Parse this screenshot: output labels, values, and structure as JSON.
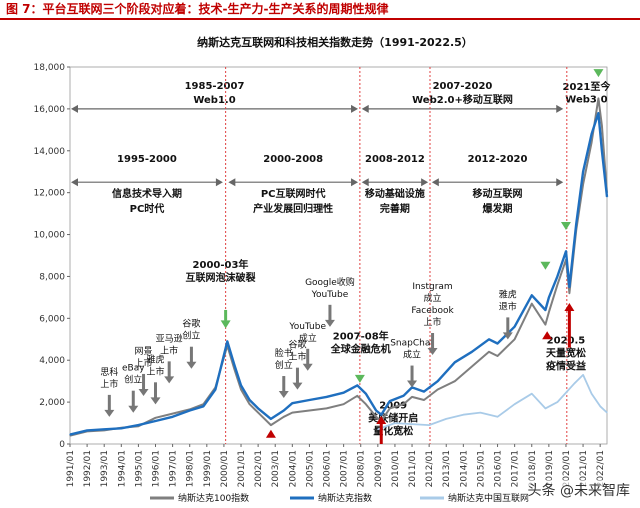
{
  "figure": {
    "caption": "图 7：平台互联网三个阶段对应着：技术-生产力-生产关系的周期性规律",
    "watermark": "头条 @未来智库"
  },
  "chart_data": {
    "type": "line",
    "title": "纳斯达克互联网和科技相关指数走势（1991-2022.5）",
    "ylim": [
      0,
      18000
    ],
    "yticks": [
      "0",
      "2,000",
      "4,000",
      "6,000",
      "8,000",
      "10,000",
      "12,000",
      "14,000",
      "16,000",
      "18,000"
    ],
    "xticks": [
      "1991/01",
      "1992/01",
      "1993/01",
      "1994/01",
      "1995/01",
      "1996/01",
      "1997/01",
      "1998/01",
      "1999/01",
      "2000/01",
      "2001/01",
      "2002/01",
      "2003/01",
      "2004/01",
      "2005/01",
      "2006/01",
      "2007/01",
      "2008/01",
      "2009/01",
      "2010/01",
      "2011/01",
      "2012/01",
      "2013/01",
      "2014/01",
      "2015/01",
      "2016/01",
      "2017/01",
      "2018/01",
      "2019/01",
      "2020/01",
      "2021/01",
      "2022/01"
    ],
    "xrange": [
      1991.0,
      2022.4
    ],
    "series": [
      {
        "name": "纳斯达克100指数",
        "color": "#7f7f7f",
        "x": [
          1991.0,
          1992.0,
          1993.0,
          1994.0,
          1995.0,
          1996.0,
          1997.0,
          1998.0,
          1998.8,
          1999.5,
          2000.2,
          2000.6,
          2001.0,
          2001.5,
          2002.0,
          2002.75,
          2003.5,
          2004.0,
          2005.0,
          2006.0,
          2007.0,
          2007.8,
          2008.3,
          2008.9,
          2009.2,
          2009.7,
          2010.5,
          2011.0,
          2011.7,
          2012.5,
          2013.5,
          2014.5,
          2015.5,
          2016.0,
          2017.0,
          2018.0,
          2018.8,
          2019.0,
          2019.5,
          2020.0,
          2020.2,
          2020.6,
          2021.0,
          2021.5,
          2021.9,
          2022.1,
          2022.4
        ],
        "y": [
          400,
          600,
          650,
          780,
          850,
          1250,
          1450,
          1650,
          1900,
          2700,
          4700,
          3600,
          2600,
          1900,
          1500,
          900,
          1300,
          1500,
          1600,
          1700,
          1900,
          2300,
          1900,
          1300,
          1100,
          1700,
          1900,
          2250,
          2100,
          2600,
          3000,
          3700,
          4400,
          4200,
          5000,
          6700,
          5700,
          6300,
          7600,
          8800,
          7200,
          10200,
          12400,
          14400,
          16500,
          15200,
          12000
        ]
      },
      {
        "name": "纳斯达克指数",
        "color": "#1f6fbf",
        "x": [
          1991.0,
          1992.0,
          1993.0,
          1994.0,
          1995.0,
          1996.0,
          1997.0,
          1998.0,
          1998.8,
          1999.5,
          2000.2,
          2000.6,
          2001.0,
          2001.5,
          2002.0,
          2002.75,
          2003.5,
          2004.0,
          2005.0,
          2006.0,
          2007.0,
          2007.8,
          2008.3,
          2008.9,
          2009.2,
          2009.7,
          2010.5,
          2011.0,
          2011.7,
          2012.5,
          2013.5,
          2014.5,
          2015.5,
          2016.0,
          2017.0,
          2018.0,
          2018.8,
          2019.0,
          2019.5,
          2020.0,
          2020.2,
          2020.6,
          2021.0,
          2021.5,
          2021.9,
          2022.1,
          2022.4
        ],
        "y": [
          450,
          650,
          700,
          750,
          900,
          1100,
          1300,
          1600,
          1800,
          2600,
          4900,
          3800,
          2800,
          2100,
          1700,
          1200,
          1600,
          1950,
          2100,
          2250,
          2450,
          2800,
          2400,
          1600,
          1400,
          2050,
          2300,
          2700,
          2500,
          3000,
          3900,
          4400,
          5000,
          4800,
          5600,
          7100,
          6400,
          7000,
          8000,
          9200,
          7500,
          10500,
          13000,
          14800,
          15800,
          14000,
          11800
        ]
      },
      {
        "name": "纳斯达克中国互联网",
        "color": "#a9cbe8",
        "x": [
          2009.0,
          2010.0,
          2011.0,
          2012.0,
          2013.0,
          2014.0,
          2015.0,
          2016.0,
          2017.0,
          2018.0,
          2018.8,
          2019.5,
          2020.5,
          2021.0,
          2021.5,
          2022.0,
          2022.4
        ],
        "y": [
          700,
          1000,
          950,
          900,
          1200,
          1400,
          1500,
          1300,
          1900,
          2400,
          1700,
          2000,
          2900,
          3300,
          2400,
          1800,
          1500
        ]
      }
    ],
    "phase_spans": [
      {
        "label1": "1985-2007",
        "label2": "Web1.0",
        "from": 1991.0,
        "to": 2007.9,
        "level": 16000
      },
      {
        "label1": "2007-2020",
        "label2": "Web2.0+移动互联网",
        "from": 2008.0,
        "to": 2019.9,
        "level": 16000
      },
      {
        "label1": "1995-2000",
        "label2": "信息技术导入期",
        "label3": "PC时代",
        "from": 1991.0,
        "to": 2000.0,
        "level": 12500
      },
      {
        "label1": "2000-2008",
        "label2": "PC互联网时代",
        "label3": "产业发展回归理性",
        "from": 2000.2,
        "to": 2007.9,
        "level": 12500
      },
      {
        "label1": "2008-2012",
        "label2": "移动基础设施",
        "label3": "完善期",
        "from": 2008.0,
        "to": 2012.0,
        "level": 12500
      },
      {
        "label1": "2012-2020",
        "label2": "移动互联网",
        "label3": "爆发期",
        "from": 2012.1,
        "to": 2019.9,
        "level": 12500
      }
    ],
    "top_label": {
      "line1": "2021至今",
      "line2": "Web3.0"
    },
    "vlines": [
      2000.1,
      2007.95,
      2012.05,
      2020.05
    ],
    "events": [
      {
        "lines": [
          "思科",
          "上市"
        ],
        "x": 1993.3
      },
      {
        "lines": [
          "eBay",
          "创立"
        ],
        "x": 1994.7
      },
      {
        "lines": [
          "网景",
          "上市"
        ],
        "x": 1995.3
      },
      {
        "lines": [
          "雅虎",
          "上市"
        ],
        "x": 1996.0
      },
      {
        "lines": [
          "亚马逊",
          "上市"
        ],
        "x": 1996.8
      },
      {
        "lines": [
          "谷歌",
          "创立"
        ],
        "x": 1998.1
      },
      {
        "lines": [
          "脸书",
          "创立"
        ],
        "x": 2003.5
      },
      {
        "lines": [
          "谷歌",
          "上市"
        ],
        "x": 2004.3
      },
      {
        "lines": [
          "YouTube",
          "成立"
        ],
        "x": 2004.9
      },
      {
        "lines": [
          "Google收购",
          "YouTube"
        ],
        "x": 2006.2
      },
      {
        "lines": [
          "SnapChat",
          "成立"
        ],
        "x": 2011.0
      },
      {
        "lines": [
          "Instgram",
          "成立",
          "Facebook",
          "上市"
        ],
        "x": 2012.2
      },
      {
        "lines": [
          "雅虎",
          "退市"
        ],
        "x": 2016.6
      }
    ],
    "callouts": [
      {
        "lines": [
          "2000-03年",
          "互联网泡沫破裂"
        ],
        "x": 1999.8
      },
      {
        "lines": [
          "2007-08年",
          "全球金融危机"
        ],
        "x": 2008.0
      },
      {
        "lines": [
          "2009",
          "美联储开启",
          "量化宽松"
        ],
        "x": 2009.9
      },
      {
        "lines": [
          "2020.5",
          "天量宽松",
          "疫情受益"
        ],
        "x": 2020.0
      }
    ]
  }
}
